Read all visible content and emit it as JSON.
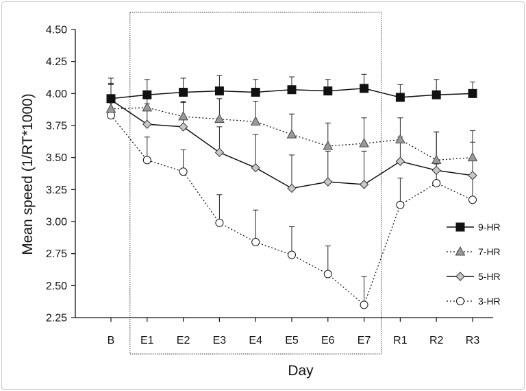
{
  "chart_data": {
    "type": "line",
    "title": "",
    "xlabel": "Day",
    "ylabel": "Mean speed (1/RT*1000)",
    "categories": [
      "B",
      "E1",
      "E2",
      "E3",
      "E4",
      "E5",
      "E6",
      "E7",
      "R1",
      "R2",
      "R3"
    ],
    "ylim": [
      2.25,
      4.5
    ],
    "yticks": [
      "4.50",
      "4.25",
      "4.00",
      "3.75",
      "3.50",
      "3.25",
      "3.00",
      "2.75",
      "2.50",
      "2.25"
    ],
    "ytick_values": [
      4.5,
      4.25,
      4.0,
      3.75,
      3.5,
      3.25,
      3.0,
      2.75,
      2.5,
      2.25
    ],
    "highlight_range": [
      "E1",
      "E7"
    ],
    "legend_position": "right",
    "series": [
      {
        "name": "9-HR",
        "line": "solid",
        "marker": "square",
        "marker_fill": "#111111",
        "values": [
          3.96,
          3.99,
          4.01,
          4.02,
          4.01,
          4.03,
          4.02,
          4.04,
          3.97,
          3.99,
          4.0
        ],
        "errors": [
          0.16,
          0.12,
          0.11,
          0.12,
          0.1,
          0.1,
          0.09,
          0.11,
          0.1,
          0.12,
          0.09
        ]
      },
      {
        "name": "7-HR",
        "line": "dotted",
        "marker": "triangle",
        "marker_fill": "#9a9a9a",
        "values": [
          3.88,
          3.89,
          3.82,
          3.8,
          3.78,
          3.68,
          3.59,
          3.61,
          3.64,
          3.48,
          3.5
        ],
        "errors": [
          0.2,
          0.08,
          0.12,
          0.16,
          0.16,
          0.16,
          0.18,
          0.2,
          0.17,
          0.22,
          0.21
        ]
      },
      {
        "name": "5-HR",
        "line": "solid",
        "marker": "diamond",
        "marker_fill": "#c8c8c8",
        "values": [
          3.95,
          3.76,
          3.74,
          3.54,
          3.42,
          3.26,
          3.31,
          3.29,
          3.47,
          3.4,
          3.36
        ],
        "errors": [
          0.12,
          0.16,
          0.19,
          0.2,
          0.26,
          0.26,
          0.24,
          0.26,
          0.19,
          0.3,
          0.26
        ]
      },
      {
        "name": "3-HR",
        "line": "dotted",
        "marker": "circle",
        "marker_fill": "#ffffff",
        "values": [
          3.83,
          3.48,
          3.39,
          2.99,
          2.84,
          2.74,
          2.59,
          2.35,
          3.13,
          3.3,
          3.17
        ],
        "errors": [
          0.24,
          0.18,
          0.17,
          0.22,
          0.25,
          0.22,
          0.22,
          0.22,
          0.21,
          0.15,
          0.17
        ]
      }
    ]
  }
}
